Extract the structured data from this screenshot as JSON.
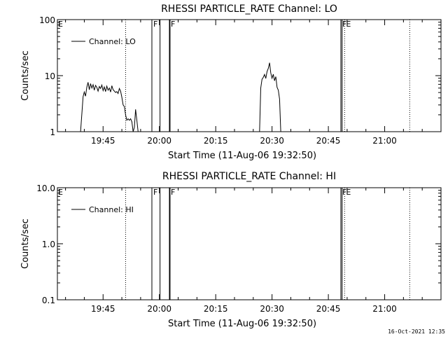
{
  "timestamp": "16-Oct-2021 12:35",
  "chart_data": [
    {
      "type": "line",
      "title": "RHESSI PARTICLE_RATE Channel: LO",
      "xlabel": "Start Time (11-Aug-06 19:32:50)",
      "ylabel": "Counts/sec",
      "y_scale": "log",
      "xlim": [
        "19:32:50",
        "21:15:00"
      ],
      "ylim": [
        1,
        100
      ],
      "x_ticks": [
        "19:45",
        "20:00",
        "20:15",
        "20:30",
        "20:45",
        "21:00"
      ],
      "y_ticks": [
        "1",
        "10",
        "100"
      ],
      "legend": "top-left",
      "series": [
        {
          "name": "Channel: LO",
          "points": [
            {
              "x": "19:39:00",
              "y": 1.0
            },
            {
              "x": "19:39:40",
              "y": 4.2
            },
            {
              "x": "19:40:00",
              "y": 5.1
            },
            {
              "x": "19:40:20",
              "y": 4.3
            },
            {
              "x": "19:40:40",
              "y": 6.2
            },
            {
              "x": "19:41:00",
              "y": 7.6
            },
            {
              "x": "19:41:20",
              "y": 5.6
            },
            {
              "x": "19:41:40",
              "y": 7.2
            },
            {
              "x": "19:42:00",
              "y": 6.0
            },
            {
              "x": "19:42:20",
              "y": 6.9
            },
            {
              "x": "19:42:40",
              "y": 5.5
            },
            {
              "x": "19:43:00",
              "y": 6.7
            },
            {
              "x": "19:43:20",
              "y": 6.2
            },
            {
              "x": "19:43:40",
              "y": 5.3
            },
            {
              "x": "19:44:00",
              "y": 6.4
            },
            {
              "x": "19:44:20",
              "y": 5.9
            },
            {
              "x": "19:44:40",
              "y": 6.8
            },
            {
              "x": "19:45:00",
              "y": 5.4
            },
            {
              "x": "19:45:20",
              "y": 6.3
            },
            {
              "x": "19:45:40",
              "y": 5.2
            },
            {
              "x": "19:46:00",
              "y": 6.5
            },
            {
              "x": "19:46:20",
              "y": 5.5
            },
            {
              "x": "19:46:40",
              "y": 6.0
            },
            {
              "x": "19:47:00",
              "y": 5.1
            },
            {
              "x": "19:47:20",
              "y": 6.6
            },
            {
              "x": "19:47:40",
              "y": 5.6
            },
            {
              "x": "19:48:00",
              "y": 5.3
            },
            {
              "x": "19:48:20",
              "y": 5.0
            },
            {
              "x": "19:48:40",
              "y": 5.2
            },
            {
              "x": "19:49:00",
              "y": 4.8
            },
            {
              "x": "19:49:20",
              "y": 5.9
            },
            {
              "x": "19:49:40",
              "y": 5.3
            },
            {
              "x": "19:50:00",
              "y": 4.1
            },
            {
              "x": "19:50:20",
              "y": 3.0
            },
            {
              "x": "19:50:40",
              "y": 2.8
            },
            {
              "x": "19:51:00",
              "y": 2.0
            },
            {
              "x": "19:51:20",
              "y": 1.6
            },
            {
              "x": "19:51:40",
              "y": 1.7
            },
            {
              "x": "19:52:00",
              "y": 1.6
            },
            {
              "x": "19:52:20",
              "y": 1.7
            },
            {
              "x": "19:52:40",
              "y": 1.5
            },
            {
              "x": "19:53:00",
              "y": 1.0
            },
            {
              "x": "19:53:20",
              "y": 1.2
            },
            {
              "x": "19:53:40",
              "y": 2.5
            },
            {
              "x": "19:54:00",
              "y": 1.6
            },
            {
              "x": "19:54:20",
              "y": 1.0
            },
            {
              "gap": true
            },
            {
              "x": "20:26:40",
              "y": 1.0
            },
            {
              "x": "20:27:00",
              "y": 6.0
            },
            {
              "x": "20:27:20",
              "y": 8.6
            },
            {
              "x": "20:27:40",
              "y": 9.3
            },
            {
              "x": "20:28:00",
              "y": 10.5
            },
            {
              "x": "20:28:20",
              "y": 8.9
            },
            {
              "x": "20:28:40",
              "y": 11.8
            },
            {
              "x": "20:29:00",
              "y": 13.5
            },
            {
              "x": "20:29:20",
              "y": 17.0
            },
            {
              "x": "20:29:40",
              "y": 11.2
            },
            {
              "x": "20:30:00",
              "y": 9.0
            },
            {
              "x": "20:30:20",
              "y": 10.6
            },
            {
              "x": "20:30:40",
              "y": 8.1
            },
            {
              "x": "20:31:00",
              "y": 9.6
            },
            {
              "x": "20:31:20",
              "y": 6.2
            },
            {
              "x": "20:31:40",
              "y": 5.5
            },
            {
              "x": "20:32:00",
              "y": 3.8
            },
            {
              "x": "20:32:20",
              "y": 1.0
            }
          ]
        }
      ],
      "markers": [
        {
          "time": "19:51:00",
          "style": "dotted"
        },
        {
          "time": "19:58:00",
          "style": "solid",
          "label": "F"
        },
        {
          "time": "20:00:10",
          "style": "solid"
        },
        {
          "time": "20:02:40",
          "style": "solid",
          "label": "F"
        },
        {
          "time": "20:02:50",
          "style": "solid"
        },
        {
          "time": "20:48:20",
          "style": "solid",
          "label": "F"
        },
        {
          "time": "20:48:40",
          "style": "solid"
        },
        {
          "time": "20:49:20",
          "style": "dotted",
          "label": "E"
        },
        {
          "time": "21:06:40",
          "style": "dotted"
        }
      ],
      "corner_label": "E"
    },
    {
      "type": "line",
      "title": "RHESSI PARTICLE_RATE Channel: HI",
      "xlabel": "Start Time (11-Aug-06 19:32:50)",
      "ylabel": "Counts/sec",
      "y_scale": "log",
      "xlim": [
        "19:32:50",
        "21:15:00"
      ],
      "ylim": [
        0.1,
        10
      ],
      "x_ticks": [
        "19:45",
        "20:00",
        "20:15",
        "20:30",
        "20:45",
        "21:00"
      ],
      "y_ticks": [
        "0.1",
        "1.0",
        "10.0"
      ],
      "legend": "top-left",
      "series": [
        {
          "name": "Channel: HI",
          "points": []
        }
      ],
      "markers": [
        {
          "time": "19:51:00",
          "style": "dotted"
        },
        {
          "time": "19:58:00",
          "style": "solid",
          "label": "F"
        },
        {
          "time": "20:00:10",
          "style": "solid"
        },
        {
          "time": "20:02:40",
          "style": "solid",
          "label": "F"
        },
        {
          "time": "20:02:50",
          "style": "solid"
        },
        {
          "time": "20:48:20",
          "style": "solid",
          "label": "F"
        },
        {
          "time": "20:48:40",
          "style": "solid"
        },
        {
          "time": "20:49:20",
          "style": "dotted",
          "label": "E"
        },
        {
          "time": "21:06:40",
          "style": "dotted"
        }
      ],
      "corner_label": "E"
    }
  ]
}
